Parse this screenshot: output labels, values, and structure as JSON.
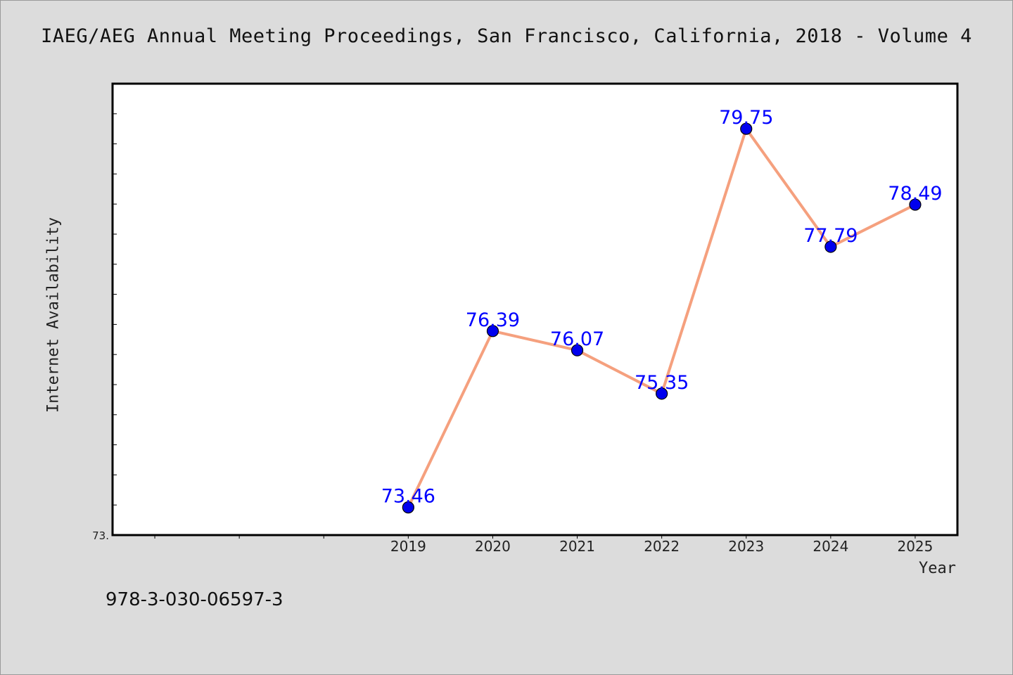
{
  "chart_data": {
    "type": "line",
    "title": "IAEG/AEG Annual Meeting Proceedings, San Francisco, California, 2018 - Volume 4",
    "xlabel": "Year",
    "ylabel": "Internet Availability",
    "categories": [
      "2019",
      "2020",
      "2021",
      "2022",
      "2023",
      "2024",
      "2025"
    ],
    "series": [
      {
        "values": [
          73.46,
          76.39,
          76.07,
          75.35,
          79.75,
          77.79,
          78.49
        ]
      }
    ],
    "data_labels": [
      "73.46",
      "76.39",
      "76.07",
      "75.35",
      "79.75",
      "77.79",
      "78.49"
    ],
    "y_tick_label": "73.",
    "ylim": [
      73.0,
      80.5
    ],
    "xlim": [
      2015.5,
      2025.5
    ],
    "grid": false,
    "legend": "none",
    "colors": {
      "line": "#f5a07e",
      "marker": "#0000ee",
      "data_label": "#0000ff",
      "plot_bg": "#ffffff",
      "page_bg": "#dcdcdc"
    }
  },
  "footer": {
    "isbn": "978-3-030-06597-3"
  }
}
